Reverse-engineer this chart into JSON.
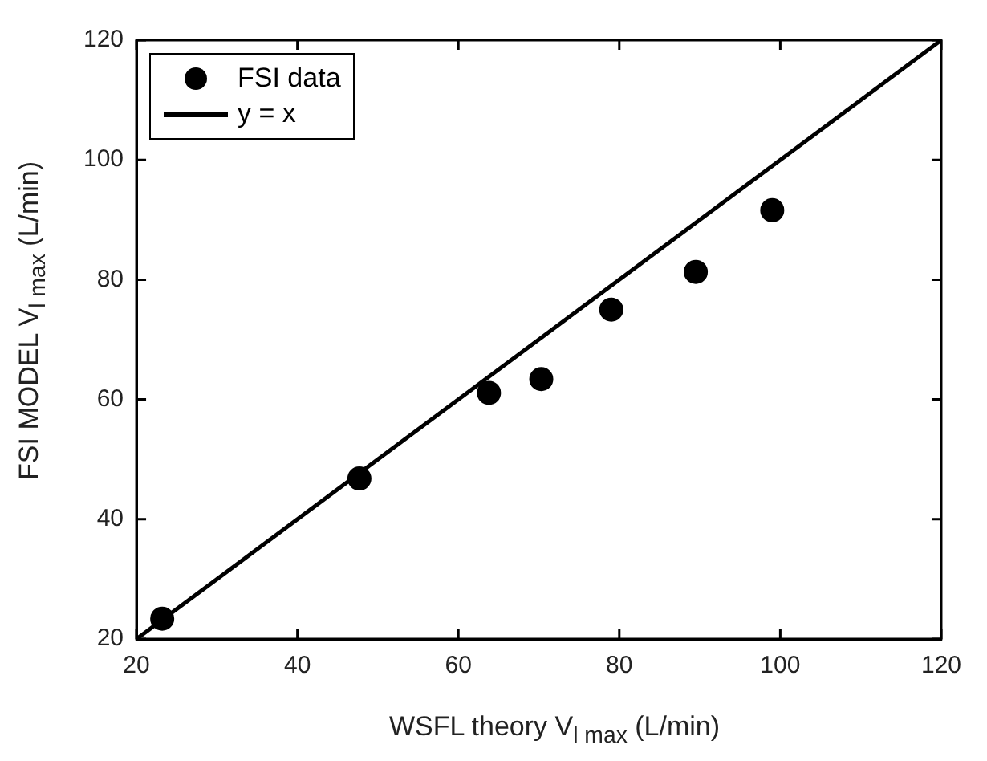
{
  "chart_data": {
    "type": "scatter",
    "xlabel": "WSFL theory V$_{l max}$ (L/min)",
    "ylabel": "FSI MODEL  V$_{l max}$ (L/min)",
    "x": [
      23.2,
      47.7,
      63.8,
      70.3,
      79.0,
      89.5,
      99.0
    ],
    "series": [
      {
        "name": "FSI data",
        "type": "scatter",
        "color": "#000000",
        "marker": "circle",
        "values": [
          23.4,
          46.8,
          61.1,
          63.4,
          75.0,
          81.3,
          91.6
        ]
      },
      {
        "name": "y = x",
        "type": "line",
        "color": "#000000",
        "marker": "none",
        "line_style": "solid",
        "x": [
          20,
          120
        ],
        "values": [
          20,
          120
        ]
      }
    ],
    "xlim": [
      20,
      120
    ],
    "ylim": [
      20,
      120
    ],
    "xticks": [
      20,
      40,
      60,
      80,
      100,
      120
    ],
    "yticks": [
      20,
      40,
      60,
      80,
      100,
      120
    ],
    "grid": false,
    "legend": "top left"
  }
}
